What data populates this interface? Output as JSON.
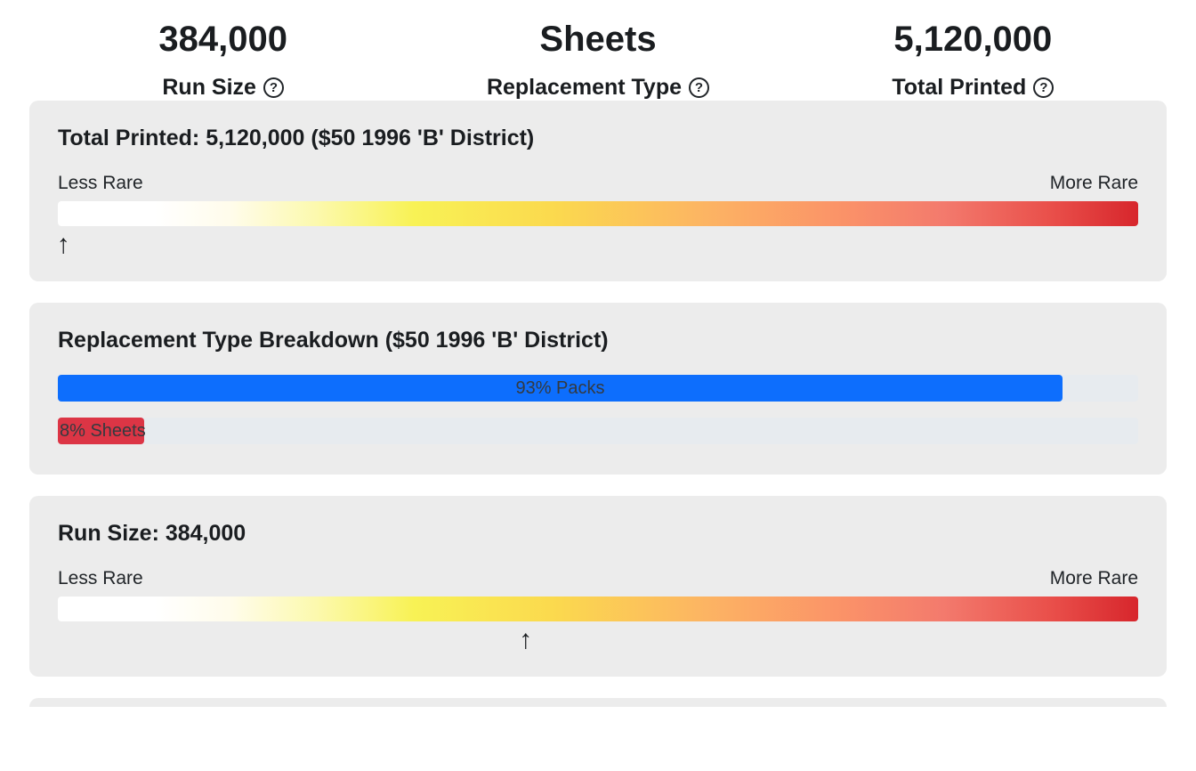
{
  "help_icon_glyph": "?",
  "stats": [
    {
      "value": "384,000",
      "label": "Run Size"
    },
    {
      "value": "Sheets",
      "label": "Replacement Type"
    },
    {
      "value": "5,120,000",
      "label": "Total Printed"
    }
  ],
  "colors": {
    "packs_bar": "#0d6efd",
    "sheets_bar": "#dc3545",
    "rarity_scale_start": "#ffffff",
    "rarity_scale_end": "#d7262c"
  },
  "total_printed_card": {
    "title": "Total Printed: 5,120,000 ($50 1996 'B' District)",
    "less_label": "Less Rare",
    "more_label": "More Rare",
    "marker_arrow": "↑",
    "marker_percent": 0.5
  },
  "breakdown_card": {
    "title": "Replacement Type Breakdown ($50 1996 'B' District)",
    "packs": {
      "label": "93% Packs",
      "percent": 93
    },
    "sheets": {
      "label": "8% Sheets",
      "percent": 8
    }
  },
  "run_size_card": {
    "title": "Run Size: 384,000",
    "less_label": "Less Rare",
    "more_label": "More Rare",
    "marker_arrow": "↑",
    "marker_percent": 43.3
  }
}
